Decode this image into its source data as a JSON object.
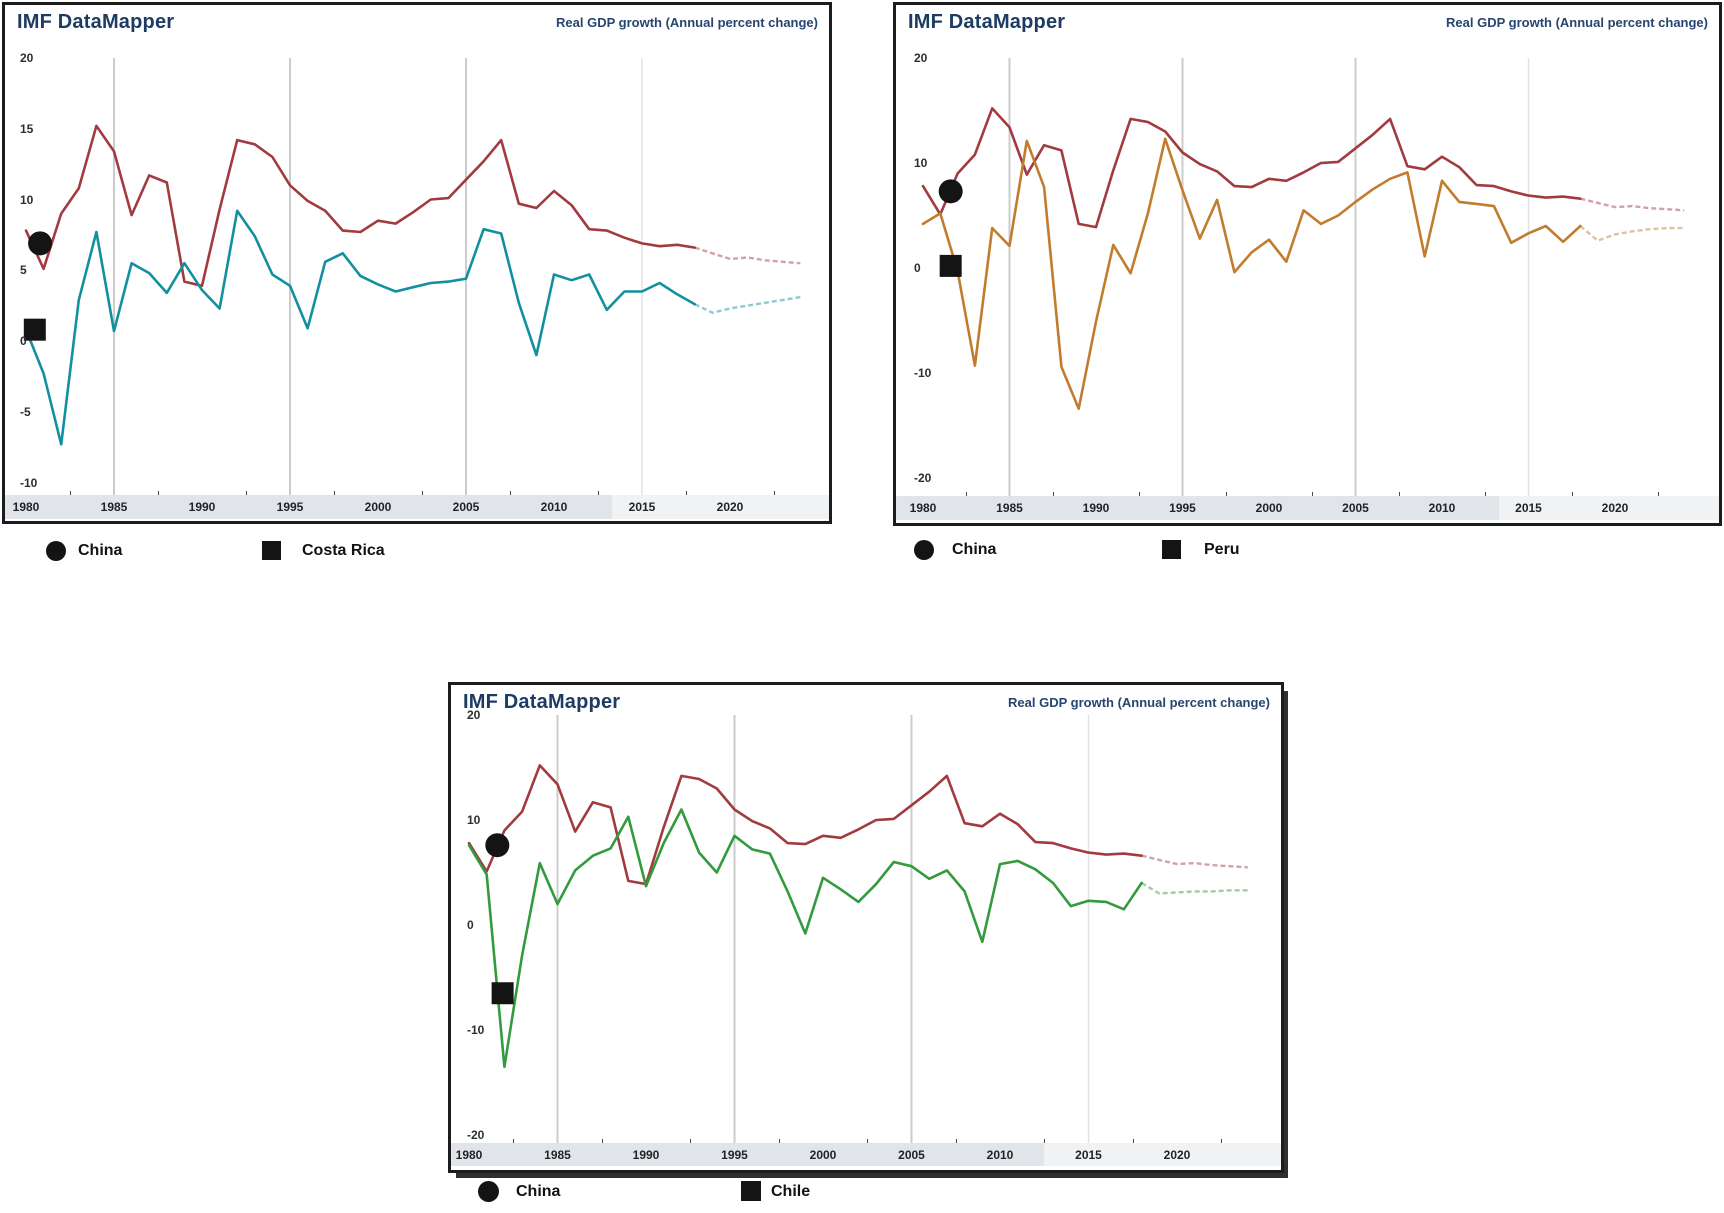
{
  "app": {
    "title": "IMF DataMapper",
    "subtitle": "Real GDP growth (Annual percent change)"
  },
  "colors": {
    "china_line": "#a23b40",
    "costa_rica_line": "#1390a0",
    "peru_line": "#c17c2e",
    "chile_line": "#339b3d",
    "title_navy": "#1d3b63",
    "gridline": "#cccccc",
    "gridline_faint": "#e2e2e2",
    "axis_band_bg": "#e1e4e9",
    "marker_black": "#141414"
  },
  "chart_data": [
    {
      "type": "line",
      "title": "IMF DataMapper",
      "subtitle": "Real GDP growth (Annual percent change)",
      "x_start": 1980,
      "x_end": 2024,
      "projection_start": 2019,
      "x_tick_labels": [
        "1980",
        "1985",
        "1990",
        "1995",
        "2000",
        "2005",
        "2010",
        "2015",
        "2020"
      ],
      "grid_years": [
        1985,
        1995,
        2005,
        2015
      ],
      "y_ticks": [
        20,
        15,
        10,
        5,
        0,
        -5,
        -10
      ],
      "ylim": [
        -11,
        20
      ],
      "series": [
        {
          "name": "China",
          "color": "#a23b40",
          "values": [
            7.8,
            5.1,
            9.0,
            10.8,
            15.2,
            13.4,
            8.9,
            11.7,
            11.2,
            4.2,
            3.9,
            9.3,
            14.2,
            13.9,
            13.0,
            11.0,
            9.9,
            9.2,
            7.8,
            7.7,
            8.5,
            8.3,
            9.1,
            10.0,
            10.1,
            11.4,
            12.7,
            14.2,
            9.7,
            9.4,
            10.6,
            9.6,
            7.9,
            7.8,
            7.3,
            6.9,
            6.7,
            6.8,
            6.6,
            6.2,
            5.8,
            5.9,
            5.7,
            5.6,
            5.5
          ]
        },
        {
          "name": "Costa Rica",
          "color": "#1390a0",
          "values": [
            0.8,
            -2.3,
            -7.3,
            2.9,
            7.7,
            0.7,
            5.5,
            4.8,
            3.4,
            5.5,
            3.6,
            2.3,
            9.2,
            7.4,
            4.7,
            3.9,
            0.9,
            5.6,
            6.2,
            4.6,
            4.0,
            3.5,
            3.8,
            4.1,
            4.2,
            4.4,
            7.9,
            7.6,
            2.7,
            -1.0,
            4.7,
            4.3,
            4.7,
            2.2,
            3.5,
            3.5,
            4.1,
            3.3,
            2.6,
            2.0,
            2.3,
            2.5,
            2.7,
            2.9,
            3.1
          ]
        }
      ],
      "legend": [
        {
          "marker": "circle",
          "label": "China"
        },
        {
          "marker": "square",
          "label": "Costa Rica"
        }
      ],
      "markers": [
        {
          "shape": "circle",
          "year": 1980.8,
          "value": 6.9
        },
        {
          "shape": "square",
          "year": 1980.5,
          "value": 0.8
        }
      ]
    },
    {
      "type": "line",
      "title": "IMF DataMapper",
      "subtitle": "Real GDP growth (Annual percent change)",
      "x_start": 1980,
      "x_end": 2024,
      "projection_start": 2019,
      "x_tick_labels": [
        "1980",
        "1985",
        "1990",
        "1995",
        "2000",
        "2005",
        "2010",
        "2015",
        "2020"
      ],
      "grid_years": [
        1985,
        1995,
        2005,
        2015
      ],
      "y_ticks": [
        20,
        10,
        0,
        -10,
        -20
      ],
      "ylim": [
        -20,
        20
      ],
      "series": [
        {
          "name": "China",
          "color": "#a23b40",
          "values": [
            7.8,
            5.1,
            9.0,
            10.8,
            15.2,
            13.4,
            8.9,
            11.7,
            11.2,
            4.2,
            3.9,
            9.3,
            14.2,
            13.9,
            13.0,
            11.0,
            9.9,
            9.2,
            7.8,
            7.7,
            8.5,
            8.3,
            9.1,
            10.0,
            10.1,
            11.4,
            12.7,
            14.2,
            9.7,
            9.4,
            10.6,
            9.6,
            7.9,
            7.8,
            7.3,
            6.9,
            6.7,
            6.8,
            6.6,
            6.2,
            5.8,
            5.9,
            5.7,
            5.6,
            5.5
          ]
        },
        {
          "name": "Peru",
          "color": "#c17c2e",
          "values": [
            4.2,
            5.2,
            -0.3,
            -9.3,
            3.8,
            2.1,
            12.1,
            7.7,
            -9.4,
            -13.4,
            -5.1,
            2.2,
            -0.5,
            5.2,
            12.3,
            7.4,
            2.8,
            6.5,
            -0.4,
            1.5,
            2.7,
            0.6,
            5.5,
            4.2,
            5.0,
            6.3,
            7.5,
            8.5,
            9.1,
            1.1,
            8.3,
            6.3,
            6.1,
            5.9,
            2.4,
            3.3,
            4.0,
            2.5,
            4.0,
            2.6,
            3.2,
            3.5,
            3.7,
            3.8,
            3.8
          ]
        }
      ],
      "legend": [
        {
          "marker": "circle",
          "label": "China"
        },
        {
          "marker": "square",
          "label": "Peru"
        }
      ],
      "markers": [
        {
          "shape": "circle",
          "year": 1981.6,
          "value": 7.3
        },
        {
          "shape": "square",
          "year": 1981.6,
          "value": 0.2
        }
      ]
    },
    {
      "type": "line",
      "title": "IMF DataMapper",
      "subtitle": "Real GDP growth (Annual percent change)",
      "x_start": 1980,
      "x_end": 2024,
      "projection_start": 2019,
      "x_tick_labels": [
        "1980",
        "1985",
        "1990",
        "1995",
        "2000",
        "2005",
        "2010",
        "2015",
        "2020"
      ],
      "grid_years": [
        1985,
        1995,
        2005,
        2015
      ],
      "y_ticks": [
        20,
        10,
        0,
        -10,
        -20
      ],
      "ylim": [
        -20,
        20
      ],
      "series": [
        {
          "name": "China",
          "color": "#a23b40",
          "values": [
            7.8,
            5.1,
            9.0,
            10.8,
            15.2,
            13.4,
            8.9,
            11.7,
            11.2,
            4.2,
            3.9,
            9.3,
            14.2,
            13.9,
            13.0,
            11.0,
            9.9,
            9.2,
            7.8,
            7.7,
            8.5,
            8.3,
            9.1,
            10.0,
            10.1,
            11.4,
            12.7,
            14.2,
            9.7,
            9.4,
            10.6,
            9.6,
            7.9,
            7.8,
            7.3,
            6.9,
            6.7,
            6.8,
            6.6,
            6.2,
            5.8,
            5.9,
            5.7,
            5.6,
            5.5
          ]
        },
        {
          "name": "Chile",
          "color": "#339b3d",
          "values": [
            7.6,
            4.8,
            -13.5,
            -2.9,
            5.9,
            2.0,
            5.2,
            6.6,
            7.3,
            10.3,
            3.7,
            7.8,
            11.0,
            6.9,
            5.0,
            8.5,
            7.2,
            6.8,
            3.2,
            -0.8,
            4.5,
            3.4,
            2.2,
            3.9,
            6.0,
            5.6,
            4.4,
            5.2,
            3.2,
            -1.6,
            5.8,
            6.1,
            5.3,
            4.0,
            1.8,
            2.3,
            2.2,
            1.5,
            4.0,
            3.0,
            3.1,
            3.2,
            3.2,
            3.3,
            3.3
          ]
        }
      ],
      "legend": [
        {
          "marker": "circle",
          "label": "China"
        },
        {
          "marker": "square",
          "label": "Chile"
        }
      ],
      "markers": [
        {
          "shape": "circle",
          "year": 1981.6,
          "value": 7.6
        },
        {
          "shape": "square",
          "year": 1981.9,
          "value": -6.5
        }
      ]
    }
  ]
}
